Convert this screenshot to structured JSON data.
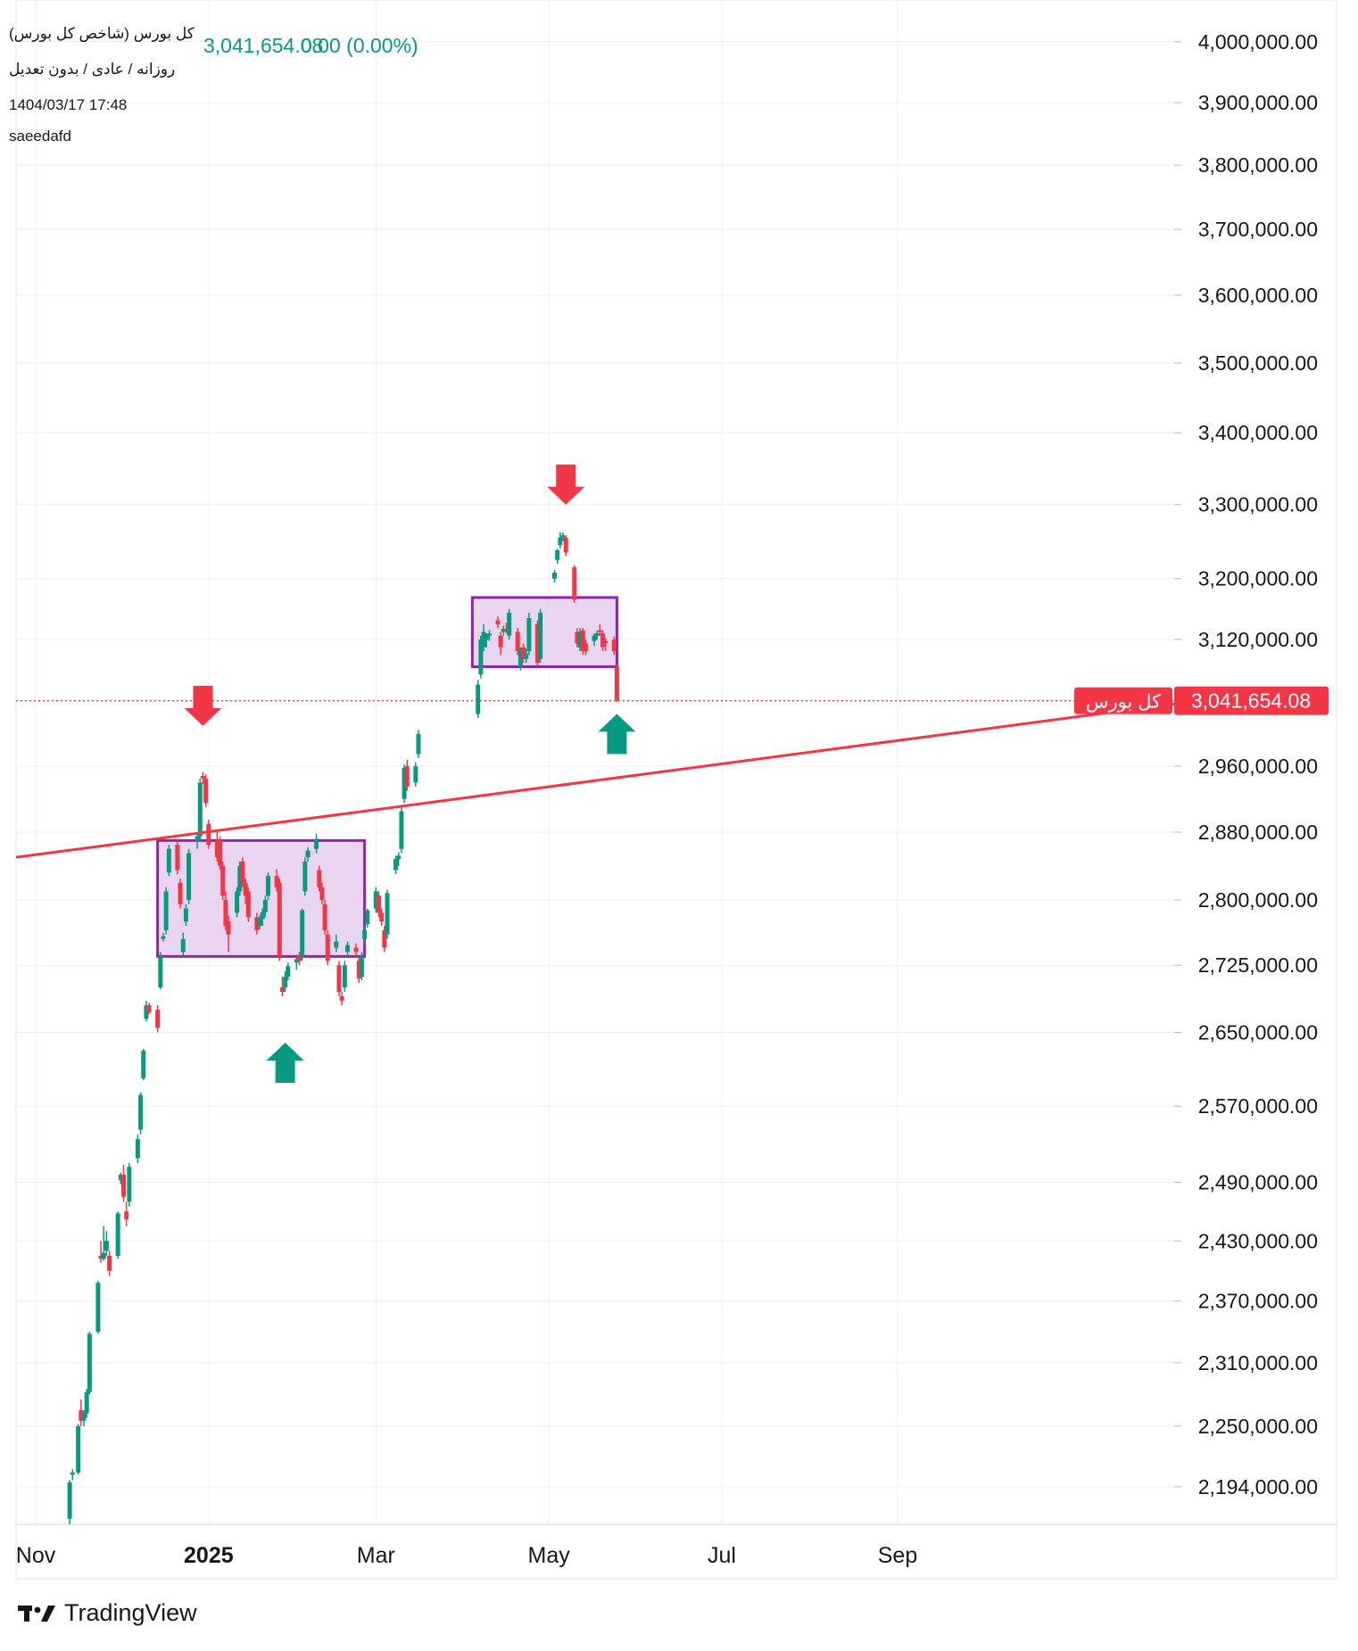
{
  "header": {
    "title": "کل بورس (شاخص کل بورس)",
    "price": "3,041,654.08",
    "change": "0.00 (0.00%)",
    "subtitle": "روزانه / عادی / بدون تعدیل",
    "timestamp": "1404/03/17 17:48",
    "author": "saeedafd"
  },
  "price_label": {
    "name": "کل بورس",
    "value": "3,041,654.08"
  },
  "footer": {
    "brand": "TradingView"
  },
  "colors": {
    "up": "#089981",
    "down": "#f23645",
    "box_fill": "#e8d0ef",
    "box_border": "#8e24aa",
    "trendline": "#f23645",
    "grid": "#eceef2"
  },
  "chart_data": {
    "type": "candlestick",
    "interval": "daily",
    "x_tick_labels": [
      "Nov",
      "2025",
      "Mar",
      "May",
      "Jul",
      "Sep"
    ],
    "y_tick_labels": [
      "4,000,000.00",
      "3,900,000.00",
      "3,800,000.00",
      "3,700,000.00",
      "3,600,000.00",
      "3,500,000.00",
      "3,400,000.00",
      "3,300,000.00",
      "3,200,000.00",
      "3,120,000.00",
      "2,960,000.00",
      "2,880,000.00",
      "2,800,000.00",
      "2,725,000.00",
      "2,650,000.00",
      "2,570,000.00",
      "2,490,000.00",
      "2,430,000.00",
      "2,370,000.00",
      "2,310,000.00",
      "2,250,000.00",
      "2,194,000.00"
    ],
    "y_ticks": [
      4000000,
      3900000,
      3800000,
      3700000,
      3600000,
      3500000,
      3400000,
      3300000,
      3200000,
      3120000,
      2960000,
      2880000,
      2800000,
      2725000,
      2650000,
      2570000,
      2490000,
      2430000,
      2370000,
      2310000,
      2250000,
      2194000
    ],
    "y_scale": "log",
    "ylim": [
      2160000,
      4070000
    ],
    "last_price": 3041654.08,
    "candles": [
      {
        "date": "2024-11-13",
        "o": 2165000,
        "h": 2200000,
        "l": 2160000,
        "c": 2198000
      },
      {
        "date": "2024-11-14",
        "o": 2205000,
        "h": 2210000,
        "l": 2200000,
        "c": 2207000
      },
      {
        "date": "2024-11-16",
        "o": 2207000,
        "h": 2252000,
        "l": 2205000,
        "c": 2250000
      },
      {
        "date": "2024-11-17",
        "o": 2265000,
        "h": 2275000,
        "l": 2250000,
        "c": 2255000
      },
      {
        "date": "2024-11-18",
        "o": 2255000,
        "h": 2265000,
        "l": 2250000,
        "c": 2262000
      },
      {
        "date": "2024-11-19",
        "o": 2262000,
        "h": 2285000,
        "l": 2258000,
        "c": 2282000
      },
      {
        "date": "2024-11-20",
        "o": 2282000,
        "h": 2340000,
        "l": 2280000,
        "c": 2338000
      },
      {
        "date": "2024-11-23",
        "o": 2340000,
        "h": 2390000,
        "l": 2338000,
        "c": 2388000
      },
      {
        "date": "2024-11-24",
        "o": 2415000,
        "h": 2430000,
        "l": 2408000,
        "c": 2412000
      },
      {
        "date": "2024-11-25",
        "o": 2412000,
        "h": 2445000,
        "l": 2410000,
        "c": 2418000
      },
      {
        "date": "2024-11-26",
        "o": 2420000,
        "h": 2440000,
        "l": 2415000,
        "c": 2430000
      },
      {
        "date": "2024-11-27",
        "o": 2415000,
        "h": 2420000,
        "l": 2395000,
        "c": 2400000
      },
      {
        "date": "2024-11-30",
        "o": 2415000,
        "h": 2460000,
        "l": 2412000,
        "c": 2458000
      },
      {
        "date": "2024-12-01",
        "o": 2492000,
        "h": 2500000,
        "l": 2488000,
        "c": 2498000
      },
      {
        "date": "2024-12-02",
        "o": 2498000,
        "h": 2508000,
        "l": 2470000,
        "c": 2475000
      },
      {
        "date": "2024-12-03",
        "o": 2460000,
        "h": 2470000,
        "l": 2445000,
        "c": 2452000
      },
      {
        "date": "2024-12-04",
        "o": 2470000,
        "h": 2510000,
        "l": 2465000,
        "c": 2506000
      },
      {
        "date": "2024-12-07",
        "o": 2515000,
        "h": 2540000,
        "l": 2510000,
        "c": 2535000
      },
      {
        "date": "2024-12-08",
        "o": 2545000,
        "h": 2585000,
        "l": 2540000,
        "c": 2582000
      },
      {
        "date": "2024-12-09",
        "o": 2600000,
        "h": 2632000,
        "l": 2598000,
        "c": 2630000
      },
      {
        "date": "2024-12-10",
        "o": 2665000,
        "h": 2685000,
        "l": 2662000,
        "c": 2680000
      },
      {
        "date": "2024-12-11",
        "o": 2680000,
        "h": 2683000,
        "l": 2670000,
        "c": 2672000
      },
      {
        "date": "2024-12-14",
        "o": 2675000,
        "h": 2680000,
        "l": 2650000,
        "c": 2655000
      },
      {
        "date": "2024-12-15",
        "o": 2700000,
        "h": 2740000,
        "l": 2698000,
        "c": 2735000
      },
      {
        "date": "2024-12-16",
        "o": 2755000,
        "h": 2762000,
        "l": 2752000,
        "c": 2758000
      },
      {
        "date": "2024-12-17",
        "o": 2765000,
        "h": 2815000,
        "l": 2760000,
        "c": 2810000
      },
      {
        "date": "2024-12-18",
        "o": 2832000,
        "h": 2865000,
        "l": 2828000,
        "c": 2860000
      },
      {
        "date": "2024-12-21",
        "o": 2865000,
        "h": 2870000,
        "l": 2830000,
        "c": 2835000
      },
      {
        "date": "2024-12-22",
        "o": 2820000,
        "h": 2825000,
        "l": 2790000,
        "c": 2795000
      },
      {
        "date": "2024-12-23",
        "o": 2740000,
        "h": 2762000,
        "l": 2735000,
        "c": 2755000
      },
      {
        "date": "2024-12-24",
        "o": 2775000,
        "h": 2795000,
        "l": 2770000,
        "c": 2790000
      },
      {
        "date": "2024-12-25",
        "o": 2800000,
        "h": 2860000,
        "l": 2795000,
        "c": 2855000
      },
      {
        "date": "2024-12-28",
        "o": 2870000,
        "h": 2880000,
        "l": 2860000,
        "c": 2875000
      },
      {
        "date": "2024-12-29",
        "o": 2875000,
        "h": 2945000,
        "l": 2870000,
        "c": 2940000
      },
      {
        "date": "2024-12-30",
        "o": 2948000,
        "h": 2953000,
        "l": 2938000,
        "c": 2945000
      },
      {
        "date": "2024-12-31",
        "o": 2945000,
        "h": 2950000,
        "l": 2910000,
        "c": 2915000
      },
      {
        "date": "2025-01-01",
        "o": 2890000,
        "h": 2895000,
        "l": 2860000,
        "c": 2865000
      },
      {
        "date": "2025-01-04",
        "o": 2870000,
        "h": 2880000,
        "l": 2845000,
        "c": 2850000
      },
      {
        "date": "2025-01-05",
        "o": 2870000,
        "h": 2875000,
        "l": 2835000,
        "c": 2840000
      },
      {
        "date": "2025-01-06",
        "o": 2840000,
        "h": 2845000,
        "l": 2800000,
        "c": 2805000
      },
      {
        "date": "2025-01-07",
        "o": 2800000,
        "h": 2810000,
        "l": 2765000,
        "c": 2770000
      },
      {
        "date": "2025-01-08",
        "o": 2775000,
        "h": 2782000,
        "l": 2740000,
        "c": 2760000
      },
      {
        "date": "2025-01-11",
        "o": 2785000,
        "h": 2815000,
        "l": 2780000,
        "c": 2810000
      },
      {
        "date": "2025-01-12",
        "o": 2810000,
        "h": 2845000,
        "l": 2805000,
        "c": 2840000
      },
      {
        "date": "2025-01-13",
        "o": 2845000,
        "h": 2850000,
        "l": 2815000,
        "c": 2820000
      },
      {
        "date": "2025-01-14",
        "o": 2820000,
        "h": 2825000,
        "l": 2795000,
        "c": 2805000
      },
      {
        "date": "2025-01-15",
        "o": 2810000,
        "h": 2815000,
        "l": 2775000,
        "c": 2780000
      },
      {
        "date": "2025-01-18",
        "o": 2780000,
        "h": 2785000,
        "l": 2760000,
        "c": 2765000
      },
      {
        "date": "2025-01-19",
        "o": 2770000,
        "h": 2782000,
        "l": 2766000,
        "c": 2778000
      },
      {
        "date": "2025-01-20",
        "o": 2778000,
        "h": 2790000,
        "l": 2770000,
        "c": 2786000
      },
      {
        "date": "2025-01-21",
        "o": 2786000,
        "h": 2805000,
        "l": 2780000,
        "c": 2800000
      },
      {
        "date": "2025-01-22",
        "o": 2805000,
        "h": 2832000,
        "l": 2800000,
        "c": 2828000
      },
      {
        "date": "2025-01-25",
        "o": 2828000,
        "h": 2836000,
        "l": 2810000,
        "c": 2815000
      },
      {
        "date": "2025-01-26",
        "o": 2820000,
        "h": 2825000,
        "l": 2730000,
        "c": 2735000
      },
      {
        "date": "2025-01-27",
        "o": 2700000,
        "h": 2712000,
        "l": 2690000,
        "c": 2695000
      },
      {
        "date": "2025-01-28",
        "o": 2700000,
        "h": 2718000,
        "l": 2695000,
        "c": 2712000
      },
      {
        "date": "2025-01-29",
        "o": 2712000,
        "h": 2728000,
        "l": 2708000,
        "c": 2724000
      },
      {
        "date": "2025-02-01",
        "o": 2728000,
        "h": 2735000,
        "l": 2720000,
        "c": 2732000
      },
      {
        "date": "2025-02-02",
        "o": 2735000,
        "h": 2740000,
        "l": 2725000,
        "c": 2730000
      },
      {
        "date": "2025-02-03",
        "o": 2735000,
        "h": 2790000,
        "l": 2730000,
        "c": 2788000
      },
      {
        "date": "2025-02-04",
        "o": 2810000,
        "h": 2850000,
        "l": 2805000,
        "c": 2845000
      },
      {
        "date": "2025-02-05",
        "o": 2850000,
        "h": 2862000,
        "l": 2845000,
        "c": 2858000
      },
      {
        "date": "2025-02-08",
        "o": 2860000,
        "h": 2878000,
        "l": 2855000,
        "c": 2872000
      },
      {
        "date": "2025-02-09",
        "o": 2835000,
        "h": 2840000,
        "l": 2810000,
        "c": 2815000
      },
      {
        "date": "2025-02-10",
        "o": 2815000,
        "h": 2820000,
        "l": 2795000,
        "c": 2800000
      },
      {
        "date": "2025-02-11",
        "o": 2795000,
        "h": 2800000,
        "l": 2760000,
        "c": 2765000
      },
      {
        "date": "2025-02-12",
        "o": 2760000,
        "h": 2765000,
        "l": 2725000,
        "c": 2730000
      },
      {
        "date": "2025-02-15",
        "o": 2745000,
        "h": 2760000,
        "l": 2740000,
        "c": 2752000
      },
      {
        "date": "2025-02-16",
        "o": 2725000,
        "h": 2730000,
        "l": 2690000,
        "c": 2695000
      },
      {
        "date": "2025-02-17",
        "o": 2690000,
        "h": 2695000,
        "l": 2680000,
        "c": 2685000
      },
      {
        "date": "2025-02-18",
        "o": 2700000,
        "h": 2730000,
        "l": 2695000,
        "c": 2725000
      },
      {
        "date": "2025-02-19",
        "o": 2740000,
        "h": 2752000,
        "l": 2735000,
        "c": 2748000
      },
      {
        "date": "2025-02-22",
        "o": 2745000,
        "h": 2750000,
        "l": 2735000,
        "c": 2740000
      },
      {
        "date": "2025-02-23",
        "o": 2730000,
        "h": 2735000,
        "l": 2705000,
        "c": 2710000
      },
      {
        "date": "2025-02-24",
        "o": 2712000,
        "h": 2740000,
        "l": 2708000,
        "c": 2735000
      },
      {
        "date": "2025-02-25",
        "o": 2755000,
        "h": 2770000,
        "l": 2750000,
        "c": 2765000
      },
      {
        "date": "2025-02-26",
        "o": 2772000,
        "h": 2790000,
        "l": 2768000,
        "c": 2788000
      },
      {
        "date": "2025-03-01",
        "o": 2790000,
        "h": 2815000,
        "l": 2785000,
        "c": 2810000
      },
      {
        "date": "2025-03-02",
        "o": 2805000,
        "h": 2810000,
        "l": 2780000,
        "c": 2785000
      },
      {
        "date": "2025-03-03",
        "o": 2785000,
        "h": 2790000,
        "l": 2770000,
        "c": 2775000
      },
      {
        "date": "2025-03-04",
        "o": 2765000,
        "h": 2770000,
        "l": 2740000,
        "c": 2745000
      },
      {
        "date": "2025-03-05",
        "o": 2760000,
        "h": 2812000,
        "l": 2755000,
        "c": 2808000
      },
      {
        "date": "2025-03-08",
        "o": 2835000,
        "h": 2852000,
        "l": 2830000,
        "c": 2848000
      },
      {
        "date": "2025-03-09",
        "o": 2848000,
        "h": 2856000,
        "l": 2840000,
        "c": 2852000
      },
      {
        "date": "2025-03-10",
        "o": 2860000,
        "h": 2910000,
        "l": 2855000,
        "c": 2905000
      },
      {
        "date": "2025-03-11",
        "o": 2920000,
        "h": 2962000,
        "l": 2915000,
        "c": 2958000
      },
      {
        "date": "2025-03-12",
        "o": 2960000,
        "h": 2968000,
        "l": 2930000,
        "c": 2935000
      },
      {
        "date": "2025-03-15",
        "o": 2940000,
        "h": 2965000,
        "l": 2935000,
        "c": 2960000
      },
      {
        "date": "2025-03-16",
        "o": 2975000,
        "h": 3005000,
        "l": 2970000,
        "c": 3000000
      },
      {
        "date": "2025-04-06",
        "o": 3025000,
        "h": 3068000,
        "l": 3020000,
        "c": 3062000
      },
      {
        "date": "2025-04-07",
        "o": 3075000,
        "h": 3125000,
        "l": 3070000,
        "c": 3120000
      },
      {
        "date": "2025-04-08",
        "o": 3110000,
        "h": 3140000,
        "l": 3105000,
        "c": 3130000
      },
      {
        "date": "2025-04-09",
        "o": 3120000,
        "h": 3128000,
        "l": 3110000,
        "c": 3125000
      },
      {
        "date": "2025-04-10",
        "o": 3125000,
        "h": 3132000,
        "l": 3118000,
        "c": 3128000
      },
      {
        "date": "2025-04-13",
        "o": 3145000,
        "h": 3150000,
        "l": 3135000,
        "c": 3140000
      },
      {
        "date": "2025-04-14",
        "o": 3125000,
        "h": 3130000,
        "l": 3100000,
        "c": 3110000
      },
      {
        "date": "2025-04-15",
        "o": 3130000,
        "h": 3138000,
        "l": 3125000,
        "c": 3134000
      },
      {
        "date": "2025-04-16",
        "o": 3134000,
        "h": 3142000,
        "l": 3128000,
        "c": 3130000
      },
      {
        "date": "2025-04-17",
        "o": 3125000,
        "h": 3160000,
        "l": 3120000,
        "c": 3155000
      },
      {
        "date": "2025-04-20",
        "o": 3130000,
        "h": 3135000,
        "l": 3100000,
        "c": 3105000
      },
      {
        "date": "2025-04-21",
        "o": 3085000,
        "h": 3110000,
        "l": 3080000,
        "c": 3105000
      },
      {
        "date": "2025-04-22",
        "o": 3110000,
        "h": 3115000,
        "l": 3090000,
        "c": 3095000
      },
      {
        "date": "2025-04-23",
        "o": 3095000,
        "h": 3108000,
        "l": 3090000,
        "c": 3102000
      },
      {
        "date": "2025-04-24",
        "o": 3105000,
        "h": 3155000,
        "l": 3100000,
        "c": 3148000
      },
      {
        "date": "2025-04-27",
        "o": 3140000,
        "h": 3145000,
        "l": 3085000,
        "c": 3090000
      },
      {
        "date": "2025-04-28",
        "o": 3095000,
        "h": 3160000,
        "l": 3090000,
        "c": 3155000
      },
      {
        "date": "2025-05-03",
        "o": 3200000,
        "h": 3212000,
        "l": 3195000,
        "c": 3208000
      },
      {
        "date": "2025-05-04",
        "o": 3225000,
        "h": 3240000,
        "l": 3220000,
        "c": 3238000
      },
      {
        "date": "2025-05-05",
        "o": 3245000,
        "h": 3262000,
        "l": 3240000,
        "c": 3255000
      },
      {
        "date": "2025-05-06",
        "o": 3255000,
        "h": 3262000,
        "l": 3250000,
        "c": 3258000
      },
      {
        "date": "2025-05-07",
        "o": 3255000,
        "h": 3258000,
        "l": 3230000,
        "c": 3235000
      },
      {
        "date": "2025-05-10",
        "o": 3215000,
        "h": 3218000,
        "l": 3168000,
        "c": 3172000
      },
      {
        "date": "2025-05-11",
        "o": 3130000,
        "h": 3135000,
        "l": 3110000,
        "c": 3115000
      },
      {
        "date": "2025-05-12",
        "o": 3110000,
        "h": 3135000,
        "l": 3105000,
        "c": 3130000
      },
      {
        "date": "2025-05-13",
        "o": 3132000,
        "h": 3135000,
        "l": 3100000,
        "c": 3105000
      },
      {
        "date": "2025-05-14",
        "o": 3115000,
        "h": 3120000,
        "l": 3100000,
        "c": 3105000
      },
      {
        "date": "2025-05-17",
        "o": 3118000,
        "h": 3128000,
        "l": 3112000,
        "c": 3125000
      },
      {
        "date": "2025-05-18",
        "o": 3125000,
        "h": 3132000,
        "l": 3120000,
        "c": 3128000
      },
      {
        "date": "2025-05-19",
        "o": 3132000,
        "h": 3140000,
        "l": 3125000,
        "c": 3130000
      },
      {
        "date": "2025-05-20",
        "o": 3128000,
        "h": 3132000,
        "l": 3105000,
        "c": 3110000
      },
      {
        "date": "2025-05-21",
        "o": 3118000,
        "h": 3122000,
        "l": 3105000,
        "c": 3115000
      },
      {
        "date": "2025-05-24",
        "o": 3120000,
        "h": 3124000,
        "l": 3100000,
        "c": 3105000
      },
      {
        "date": "2025-05-25",
        "o": 3085000,
        "h": 3088000,
        "l": 3040000,
        "c": 3041654.08
      }
    ],
    "annotations": {
      "boxes": [
        {
          "start": "2024-12-14",
          "end": "2025-02-25",
          "top": 2870000,
          "bottom": 2735000
        },
        {
          "start": "2025-04-04",
          "end": "2025-05-25",
          "top": 3175000,
          "bottom": 3085000
        }
      ],
      "trendline": {
        "start_date": "2024-10-25",
        "start_value": 2850000,
        "end_date": "2025-10-10",
        "end_value": 3010000
      },
      "arrows": [
        {
          "dir": "down",
          "date": "2024-12-30",
          "value": 3010000
        },
        {
          "dir": "up",
          "date": "2025-01-28",
          "value": 2595000
        },
        {
          "dir": "down",
          "date": "2025-05-07",
          "value": 3300000
        },
        {
          "dir": "up",
          "date": "2025-05-25",
          "value": 2975000
        }
      ]
    }
  }
}
